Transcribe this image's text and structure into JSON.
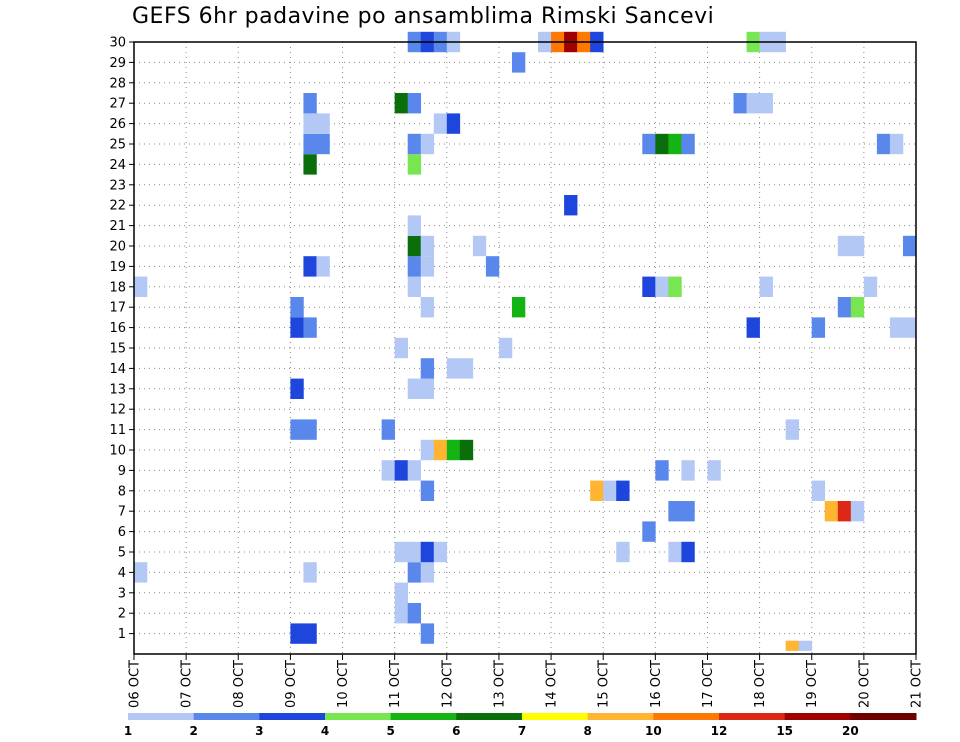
{
  "title": "GEFS 6hr padavine po ansamblima Rimski Sancevi",
  "chart_data": {
    "type": "heatmap",
    "title": "GEFS 6hr padavine po ansamblima Rimski Sancevi",
    "x_ticks": [
      "06 OCT",
      "07 OCT",
      "08 OCT",
      "09 OCT",
      "10 OCT",
      "11 OCT",
      "12 OCT",
      "13 OCT",
      "14 OCT",
      "15 OCT",
      "16 OCT",
      "17 OCT",
      "18 OCT",
      "19 OCT",
      "20 OCT",
      "21 OCT"
    ],
    "y_ticks": [
      1,
      2,
      3,
      4,
      5,
      6,
      7,
      8,
      9,
      10,
      11,
      12,
      13,
      14,
      15,
      16,
      17,
      18,
      19,
      20,
      21,
      22,
      23,
      24,
      25,
      26,
      27,
      28,
      29,
      30
    ],
    "xlim_days": [
      6,
      21
    ],
    "ylim": [
      0,
      30
    ],
    "grid": true,
    "time_step_hours": 6,
    "colorbar": {
      "levels": [
        "1",
        "2",
        "3",
        "4",
        "5",
        "6",
        "7",
        "8",
        "10",
        "12",
        "15",
        "20"
      ],
      "colors": [
        "#b4c8f5",
        "#5a87eb",
        "#1e46dc",
        "#78e650",
        "#14b414",
        "#0a6e0a",
        "#ffff00",
        "#ffb432",
        "#ff7800",
        "#dc2814",
        "#a00000",
        "#6e0000"
      ]
    },
    "cells_note": "day = start of 6-hour bin in October days; m = ensemble member; c = color bin index",
    "cells": [
      {
        "day": 9.0,
        "m": 1,
        "c": 2
      },
      {
        "day": 9.25,
        "m": 1,
        "c": 2
      },
      {
        "day": 11.5,
        "m": 1,
        "c": 1
      },
      {
        "day": 11.0,
        "m": 2,
        "c": 0
      },
      {
        "day": 11.25,
        "m": 2,
        "c": 1
      },
      {
        "day": 11.0,
        "m": 3,
        "c": 0
      },
      {
        "day": 6.0,
        "m": 4,
        "c": 0
      },
      {
        "day": 9.25,
        "m": 4,
        "c": 0
      },
      {
        "day": 11.25,
        "m": 4,
        "c": 1
      },
      {
        "day": 11.5,
        "m": 4,
        "c": 0
      },
      {
        "day": 11.0,
        "m": 5,
        "c": 0
      },
      {
        "day": 11.25,
        "m": 5,
        "c": 0
      },
      {
        "day": 11.5,
        "m": 5,
        "c": 2
      },
      {
        "day": 11.75,
        "m": 5,
        "c": 0
      },
      {
        "day": 15.25,
        "m": 5,
        "c": 0
      },
      {
        "day": 16.25,
        "m": 5,
        "c": 0
      },
      {
        "day": 16.5,
        "m": 5,
        "c": 2
      },
      {
        "day": 15.75,
        "m": 6,
        "c": 1
      },
      {
        "day": 16.25,
        "m": 7,
        "c": 1
      },
      {
        "day": 16.5,
        "m": 7,
        "c": 1
      },
      {
        "day": 19.25,
        "m": 7,
        "c": 7
      },
      {
        "day": 19.5,
        "m": 7,
        "c": 9
      },
      {
        "day": 19.75,
        "m": 7,
        "c": 0
      },
      {
        "day": 11.5,
        "m": 8,
        "c": 1
      },
      {
        "day": 14.75,
        "m": 8,
        "c": 7
      },
      {
        "day": 15.0,
        "m": 8,
        "c": 0
      },
      {
        "day": 15.25,
        "m": 8,
        "c": 2
      },
      {
        "day": 19.0,
        "m": 8,
        "c": 0
      },
      {
        "day": 10.75,
        "m": 9,
        "c": 0
      },
      {
        "day": 11.0,
        "m": 9,
        "c": 2
      },
      {
        "day": 11.25,
        "m": 9,
        "c": 0
      },
      {
        "day": 16.0,
        "m": 9,
        "c": 1
      },
      {
        "day": 16.5,
        "m": 9,
        "c": 0
      },
      {
        "day": 17.0,
        "m": 9,
        "c": 0
      },
      {
        "day": 11.5,
        "m": 10,
        "c": 0
      },
      {
        "day": 11.75,
        "m": 10,
        "c": 7
      },
      {
        "day": 12.0,
        "m": 10,
        "c": 4
      },
      {
        "day": 12.25,
        "m": 10,
        "c": 5
      },
      {
        "day": 9.0,
        "m": 11,
        "c": 1
      },
      {
        "day": 9.25,
        "m": 11,
        "c": 1
      },
      {
        "day": 10.75,
        "m": 11,
        "c": 1
      },
      {
        "day": 18.5,
        "m": 11,
        "c": 0
      },
      {
        "day": 9.0,
        "m": 13,
        "c": 2
      },
      {
        "day": 11.25,
        "m": 13,
        "c": 0
      },
      {
        "day": 11.5,
        "m": 13,
        "c": 0
      },
      {
        "day": 11.5,
        "m": 14,
        "c": 1
      },
      {
        "day": 12.0,
        "m": 14,
        "c": 0
      },
      {
        "day": 12.25,
        "m": 14,
        "c": 0
      },
      {
        "day": 11.0,
        "m": 15,
        "c": 0
      },
      {
        "day": 13.0,
        "m": 15,
        "c": 0
      },
      {
        "day": 9.0,
        "m": 16,
        "c": 2
      },
      {
        "day": 9.25,
        "m": 16,
        "c": 1
      },
      {
        "day": 17.75,
        "m": 16,
        "c": 2
      },
      {
        "day": 19.0,
        "m": 16,
        "c": 1
      },
      {
        "day": 20.5,
        "m": 16,
        "c": 0
      },
      {
        "day": 20.75,
        "m": 16,
        "c": 0
      },
      {
        "day": 9.0,
        "m": 17,
        "c": 1
      },
      {
        "day": 11.5,
        "m": 17,
        "c": 0
      },
      {
        "day": 13.25,
        "m": 17,
        "c": 4
      },
      {
        "day": 19.5,
        "m": 17,
        "c": 1
      },
      {
        "day": 19.75,
        "m": 17,
        "c": 3
      },
      {
        "day": 6.0,
        "m": 18,
        "c": 0
      },
      {
        "day": 11.25,
        "m": 18,
        "c": 0
      },
      {
        "day": 15.75,
        "m": 18,
        "c": 2
      },
      {
        "day": 16.0,
        "m": 18,
        "c": 0
      },
      {
        "day": 16.25,
        "m": 18,
        "c": 3
      },
      {
        "day": 18.0,
        "m": 18,
        "c": 0
      },
      {
        "day": 20.0,
        "m": 18,
        "c": 0
      },
      {
        "day": 9.25,
        "m": 19,
        "c": 2
      },
      {
        "day": 9.5,
        "m": 19,
        "c": 0
      },
      {
        "day": 11.25,
        "m": 19,
        "c": 1
      },
      {
        "day": 11.5,
        "m": 19,
        "c": 0
      },
      {
        "day": 12.75,
        "m": 19,
        "c": 1
      },
      {
        "day": 11.25,
        "m": 20,
        "c": 5
      },
      {
        "day": 11.5,
        "m": 20,
        "c": 0
      },
      {
        "day": 12.5,
        "m": 20,
        "c": 0
      },
      {
        "day": 19.5,
        "m": 20,
        "c": 0
      },
      {
        "day": 19.75,
        "m": 20,
        "c": 0
      },
      {
        "day": 20.75,
        "m": 20,
        "c": 1
      },
      {
        "day": 11.25,
        "m": 21,
        "c": 0
      },
      {
        "day": 14.25,
        "m": 22,
        "c": 2
      },
      {
        "day": 9.25,
        "m": 24,
        "c": 5
      },
      {
        "day": 11.25,
        "m": 24,
        "c": 3
      },
      {
        "day": 9.25,
        "m": 25,
        "c": 1
      },
      {
        "day": 9.5,
        "m": 25,
        "c": 1
      },
      {
        "day": 11.25,
        "m": 25,
        "c": 1
      },
      {
        "day": 11.5,
        "m": 25,
        "c": 0
      },
      {
        "day": 15.75,
        "m": 25,
        "c": 1
      },
      {
        "day": 16.0,
        "m": 25,
        "c": 5
      },
      {
        "day": 16.25,
        "m": 25,
        "c": 4
      },
      {
        "day": 16.5,
        "m": 25,
        "c": 1
      },
      {
        "day": 20.25,
        "m": 25,
        "c": 1
      },
      {
        "day": 20.5,
        "m": 25,
        "c": 0
      },
      {
        "day": 9.25,
        "m": 26,
        "c": 0
      },
      {
        "day": 9.5,
        "m": 26,
        "c": 0
      },
      {
        "day": 11.75,
        "m": 26,
        "c": 0
      },
      {
        "day": 12.0,
        "m": 26,
        "c": 2
      },
      {
        "day": 9.25,
        "m": 27,
        "c": 1
      },
      {
        "day": 11.0,
        "m": 27,
        "c": 5
      },
      {
        "day": 11.25,
        "m": 27,
        "c": 1
      },
      {
        "day": 17.5,
        "m": 27,
        "c": 1
      },
      {
        "day": 17.75,
        "m": 27,
        "c": 0
      },
      {
        "day": 18.0,
        "m": 27,
        "c": 0
      },
      {
        "day": 13.25,
        "m": 29,
        "c": 1
      },
      {
        "day": 11.25,
        "m": 30,
        "c": 1
      },
      {
        "day": 11.5,
        "m": 30,
        "c": 2
      },
      {
        "day": 11.75,
        "m": 30,
        "c": 1
      },
      {
        "day": 12.0,
        "m": 30,
        "c": 0
      },
      {
        "day": 13.75,
        "m": 30,
        "c": 0
      },
      {
        "day": 14.0,
        "m": 30,
        "c": 8
      },
      {
        "day": 14.25,
        "m": 30,
        "c": 10
      },
      {
        "day": 14.5,
        "m": 30,
        "c": 8
      },
      {
        "day": 14.75,
        "m": 30,
        "c": 2
      },
      {
        "day": 17.75,
        "m": 30,
        "c": 3
      },
      {
        "day": 18.0,
        "m": 30,
        "c": 0
      },
      {
        "day": 18.25,
        "m": 30,
        "c": 0
      },
      {
        "day": 18.5,
        "m": 0,
        "c": 7
      },
      {
        "day": 18.75,
        "m": 0,
        "c": 0
      }
    ]
  }
}
